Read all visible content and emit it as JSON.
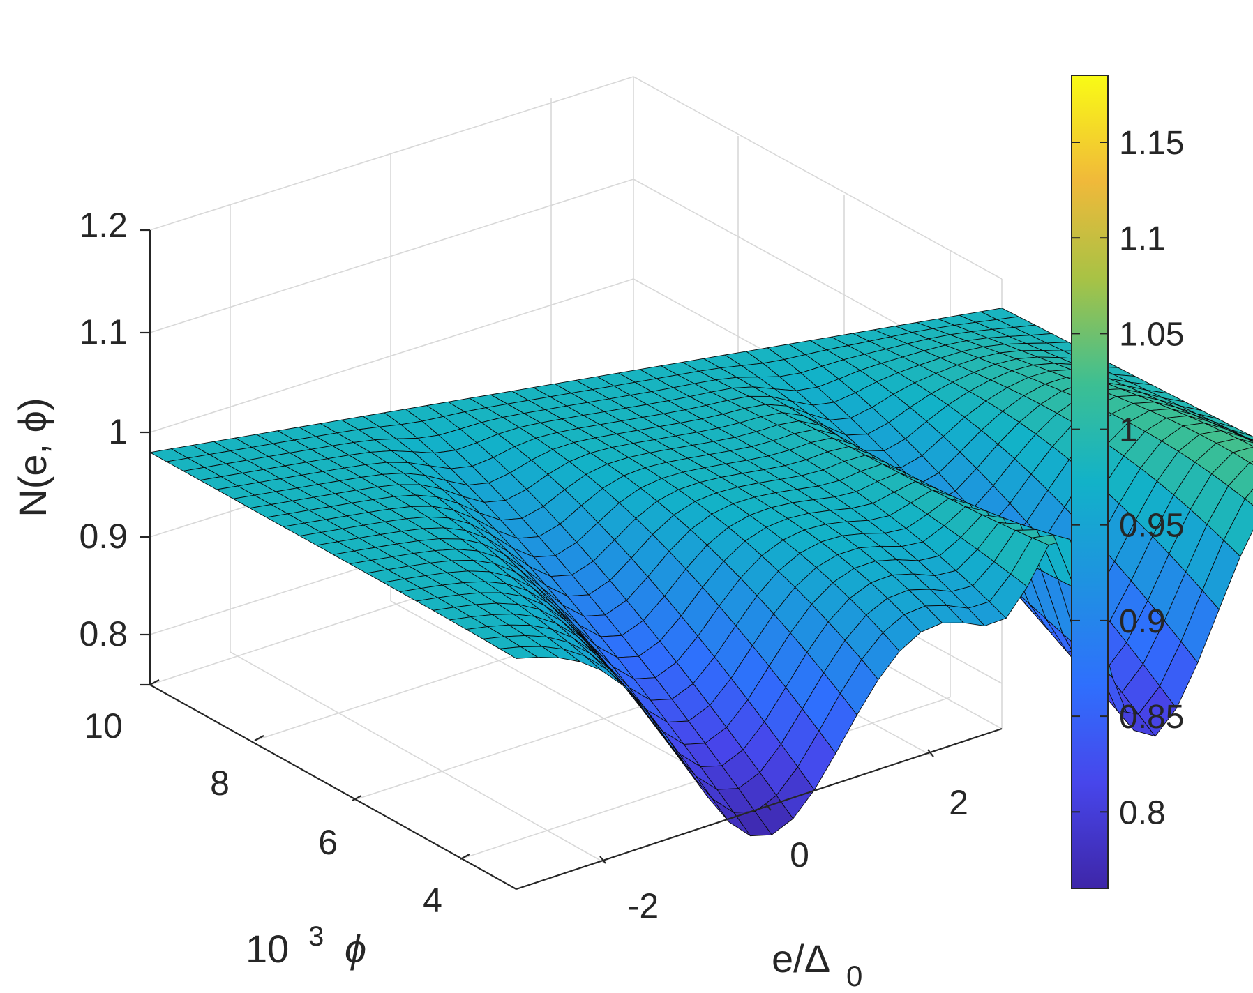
{
  "chart_data": {
    "type": "surface3d",
    "title": "",
    "xlabel": "e/Δ",
    "xlabel_subscript": "0",
    "ylabel_base": "10",
    "ylabel_exponent": "3",
    "ylabel_symbol": "ϕ",
    "zlabel": "N(e, ϕ)",
    "x_ticks": [
      "-2",
      "0",
      "2"
    ],
    "x_tick_values": [
      -2,
      0,
      2
    ],
    "y_ticks": [
      "4",
      "6",
      "8",
      "10"
    ],
    "y_tick_values": [
      4,
      6,
      8,
      10
    ],
    "z_ticks": [
      "0.8",
      "0.9",
      "1",
      "1.1",
      "1.2"
    ],
    "z_tick_values": [
      0.8,
      0.9,
      1.0,
      1.1,
      1.2
    ],
    "xlim": [
      -3,
      3
    ],
    "ylim": [
      3,
      10
    ],
    "zlim": [
      0.75,
      1.2
    ],
    "grid": true,
    "colorbar": {
      "position": "right",
      "ticks": [
        "0.8",
        "0.85",
        "0.9",
        "0.95",
        "1",
        "1.05",
        "1.1",
        "1.15"
      ],
      "tick_values": [
        0.8,
        0.85,
        0.9,
        0.95,
        1.0,
        1.05,
        1.1,
        1.15
      ],
      "range": [
        0.76,
        1.185
      ],
      "colormap": "parula"
    },
    "surface_features": {
      "flat_level_high_phi": 0.98,
      "dip_minimum_value": 0.76,
      "dip_locations_e": [
        -1.25,
        1.25
      ],
      "peak_value": 1.185,
      "side_lobe_value": 1.05
    }
  },
  "colors": {
    "gridline": "#d8d8d8",
    "axis": "#262626",
    "mesh_edge": "#0a0a0a"
  }
}
